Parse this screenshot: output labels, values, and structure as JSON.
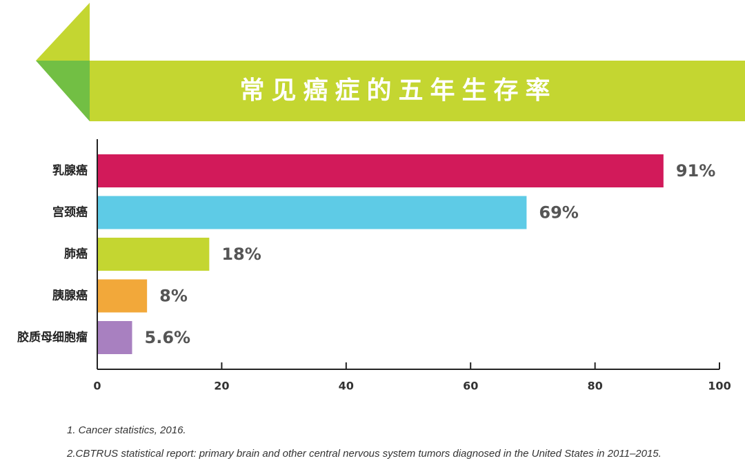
{
  "colors": {
    "banner_light": "#c4d631",
    "banner_dark": "#72bf44"
  },
  "chart_data": {
    "type": "bar",
    "orientation": "horizontal",
    "title": "常见癌症的五年生存率",
    "categories": [
      "乳腺癌",
      "宫颈癌",
      "肺癌",
      "胰腺癌",
      "胶质母细胞瘤"
    ],
    "values": [
      91,
      69,
      18,
      8,
      5.6
    ],
    "value_labels": [
      "91%",
      "69%",
      "18%",
      "8%",
      "5.6%"
    ],
    "colors": [
      "#d21a5a",
      "#5ecbe6",
      "#c4d631",
      "#f2a83a",
      "#a880c0"
    ],
    "xlim": [
      0,
      100
    ],
    "xticks": [
      0,
      20,
      40,
      60,
      80,
      100
    ],
    "xlabel": "",
    "ylabel": "",
    "grid": false,
    "legend": "none"
  },
  "footnotes": [
    "1. Cancer statistics, 2016.",
    "2.CBTRUS statistical report: primary brain and other central nervous system tumors diagnosed in the United States in 2011–2015."
  ]
}
